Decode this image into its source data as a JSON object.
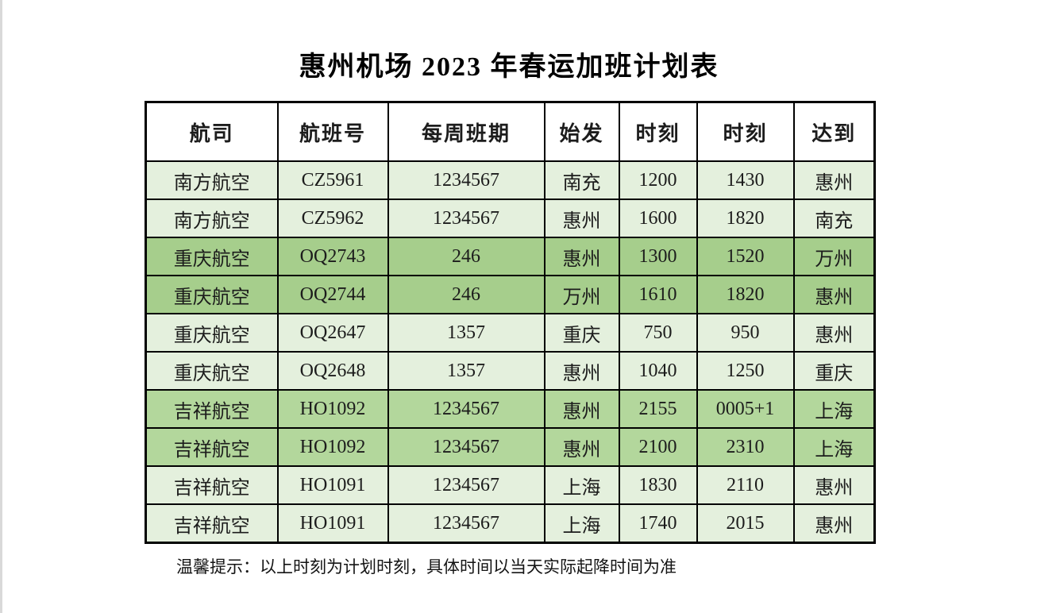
{
  "title": "惠州机场 2023 年春运加班计划表",
  "note": "温馨提示：以上时刻为计划时刻，具体时间以当天实际起降时间为准",
  "colors": {
    "header_bg": "#ffffff",
    "row_light": "#e4f0dd",
    "row_dark": "#a6ce8c",
    "row_medium": "#b3d79c",
    "border": "#000000",
    "text": "#1c1c1c"
  },
  "chart_data": {
    "type": "table",
    "title": "惠州机场 2023 年春运加班计划表",
    "headers": [
      "航司",
      "航班号",
      "每周班期",
      "始发",
      "时刻",
      "时刻",
      "达到"
    ],
    "rows": [
      {
        "shade": "light",
        "cells": [
          "南方航空",
          "CZ5961",
          "1234567",
          "南充",
          "1200",
          "1430",
          "惠州"
        ]
      },
      {
        "shade": "light",
        "cells": [
          "南方航空",
          "CZ5962",
          "1234567",
          "惠州",
          "1600",
          "1820",
          "南充"
        ]
      },
      {
        "shade": "dark",
        "cells": [
          "重庆航空",
          "OQ2743",
          "246",
          "惠州",
          "1300",
          "1520",
          "万州"
        ]
      },
      {
        "shade": "dark",
        "cells": [
          "重庆航空",
          "OQ2744",
          "246",
          "万州",
          "1610",
          "1820",
          "惠州"
        ]
      },
      {
        "shade": "light",
        "cells": [
          "重庆航空",
          "OQ2647",
          "1357",
          "重庆",
          "750",
          "950",
          "惠州"
        ]
      },
      {
        "shade": "light",
        "cells": [
          "重庆航空",
          "OQ2648",
          "1357",
          "惠州",
          "1040",
          "1250",
          "重庆"
        ]
      },
      {
        "shade": "medium",
        "cells": [
          "吉祥航空",
          "HO1092",
          "1234567",
          "惠州",
          "2155",
          "0005+1",
          "上海"
        ]
      },
      {
        "shade": "medium",
        "cells": [
          "吉祥航空",
          "HO1092",
          "1234567",
          "惠州",
          "2100",
          "2310",
          "上海"
        ]
      },
      {
        "shade": "light",
        "cells": [
          "吉祥航空",
          "HO1091",
          "1234567",
          "上海",
          "1830",
          "2110",
          "惠州"
        ]
      },
      {
        "shade": "light",
        "cells": [
          "吉祥航空",
          "HO1091",
          "1234567",
          "上海",
          "1740",
          "2015",
          "惠州"
        ]
      }
    ]
  }
}
